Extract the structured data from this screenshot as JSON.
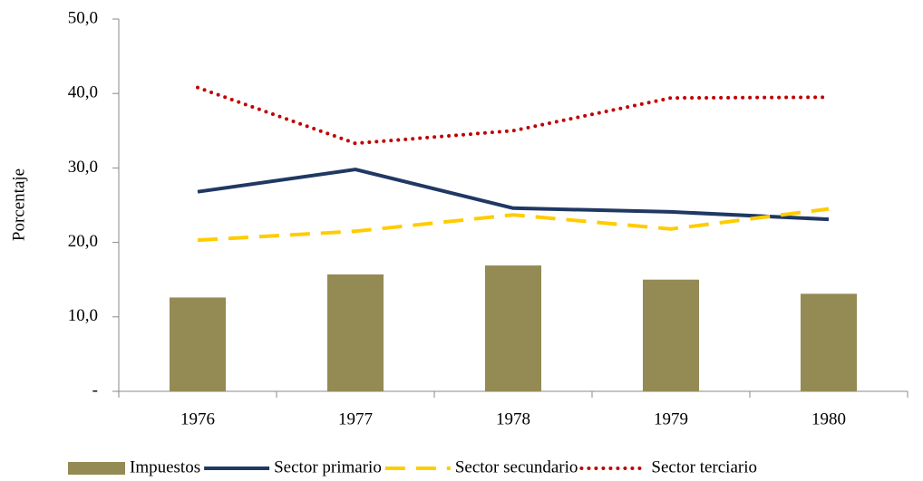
{
  "chart_data": {
    "type": "combo",
    "y_label": "Porcentaje",
    "categories": [
      "1976",
      "1977",
      "1978",
      "1979",
      "1980"
    ],
    "series": [
      {
        "name": "Impuestos",
        "type": "bar",
        "color": "#948a54",
        "values": [
          12.6,
          15.7,
          16.9,
          15.0,
          13.1
        ]
      },
      {
        "name": "Sector primario",
        "type": "line",
        "style": "solid",
        "color": "#1f3864",
        "values": [
          26.8,
          29.8,
          24.6,
          24.1,
          23.1
        ]
      },
      {
        "name": "Sector secundario",
        "type": "line",
        "style": "dashed",
        "color": "#ffcc00",
        "values": [
          20.3,
          21.5,
          23.7,
          21.8,
          24.5
        ]
      },
      {
        "name": "Sector terciario",
        "type": "line",
        "style": "dotted",
        "color": "#c00000",
        "values": [
          40.8,
          33.3,
          35.0,
          39.4,
          39.5
        ]
      }
    ],
    "ylim": [
      0,
      50
    ],
    "yticks": [
      {
        "value": 0,
        "label": "-"
      },
      {
        "value": 10,
        "label": "10,0"
      },
      {
        "value": 20,
        "label": "20,0"
      },
      {
        "value": 30,
        "label": "30,0"
      },
      {
        "value": 40,
        "label": "40,0"
      },
      {
        "value": 50,
        "label": "50,0"
      }
    ],
    "grid": false,
    "legend": "bottom"
  }
}
